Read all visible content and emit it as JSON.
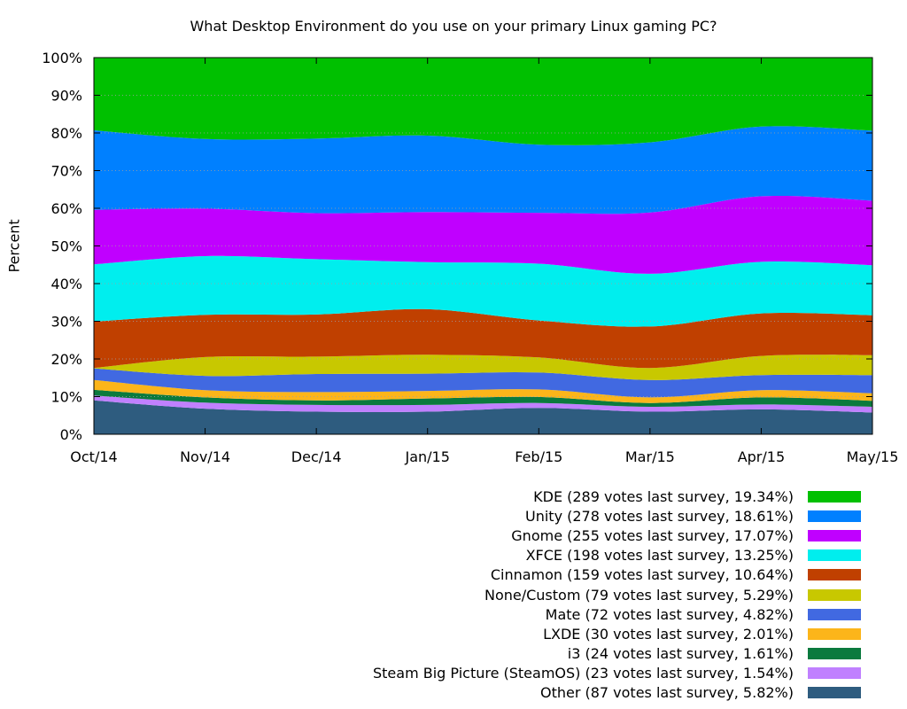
{
  "chart_data": {
    "type": "area",
    "stacked": true,
    "title": "What Desktop Environment do you use on your primary Linux gaming PC?",
    "ylabel": "Percent",
    "xlabel": "",
    "categories": [
      "Oct/14",
      "Nov/14",
      "Dec/14",
      "Jan/15",
      "Feb/15",
      "Mar/15",
      "Apr/15",
      "May/15"
    ],
    "y_ticks": [
      "0%",
      "10%",
      "20%",
      "30%",
      "40%",
      "50%",
      "60%",
      "70%",
      "80%",
      "90%",
      "100%"
    ],
    "ylim": [
      0,
      100
    ],
    "grid": true,
    "legend_position": "bottom-right",
    "series": [
      {
        "name": "Other",
        "legend": "Other (87 votes last survey, 5.82%)",
        "color": "#2e5c7f",
        "values": [
          9.0,
          6.8,
          6.0,
          6.0,
          7.0,
          6.0,
          6.6,
          5.8
        ]
      },
      {
        "name": "Steam Big Picture (SteamOS)",
        "legend": "Steam Big Picture (SteamOS) (23 votes last survey, 1.54%)",
        "color": "#c080ff",
        "values": [
          1.3,
          1.6,
          1.8,
          1.8,
          1.3,
          1.3,
          1.3,
          1.5
        ]
      },
      {
        "name": "i3",
        "legend": "i3 (24 votes last survey, 1.61%)",
        "color": "#0b7a3e",
        "values": [
          1.5,
          1.4,
          1.2,
          1.7,
          1.6,
          1.0,
          1.9,
          1.6
        ]
      },
      {
        "name": "LXDE",
        "legend": "LXDE (30 votes last survey, 2.01%)",
        "color": "#fcb51a",
        "values": [
          2.6,
          1.9,
          2.2,
          2.0,
          2.0,
          1.5,
          1.9,
          2.0
        ]
      },
      {
        "name": "Mate",
        "legend": "Mate (72 votes last survey, 4.82%)",
        "color": "#4169e1",
        "values": [
          3.1,
          3.8,
          4.8,
          4.6,
          4.5,
          4.6,
          4.0,
          4.8
        ]
      },
      {
        "name": "None/Custom",
        "legend": "None/Custom (79 votes last survey, 5.29%)",
        "color": "#c8c800",
        "values": [
          0.1,
          5.0,
          4.6,
          5.0,
          4.0,
          3.2,
          5.1,
          5.3
        ]
      },
      {
        "name": "Cinnamon",
        "legend": "Cinnamon (159 votes last survey, 10.64%)",
        "color": "#c04000",
        "values": [
          12.3,
          11.2,
          11.2,
          12.1,
          9.8,
          11.0,
          11.3,
          10.6
        ]
      },
      {
        "name": "XFCE",
        "legend": "XFCE (198 votes last survey, 13.25%)",
        "color": "#00eeee",
        "values": [
          15.2,
          15.6,
          14.7,
          12.5,
          15.1,
          14.0,
          13.7,
          13.3
        ]
      },
      {
        "name": "Gnome",
        "legend": "Gnome (255 votes last survey, 17.07%)",
        "color": "#c000ff",
        "values": [
          14.5,
          12.6,
          12.2,
          13.3,
          13.5,
          16.3,
          17.4,
          17.1
        ]
      },
      {
        "name": "Unity",
        "legend": "Unity (278 votes last survey, 18.61%)",
        "color": "#0080ff",
        "values": [
          21.1,
          18.5,
          19.8,
          20.3,
          18.1,
          18.6,
          18.5,
          18.6
        ]
      },
      {
        "name": "KDE",
        "legend": "KDE (289 votes last survey, 19.34%)",
        "color": "#00c000",
        "values": [
          19.3,
          21.6,
          21.5,
          20.7,
          23.1,
          22.5,
          18.3,
          19.4
        ]
      }
    ]
  }
}
